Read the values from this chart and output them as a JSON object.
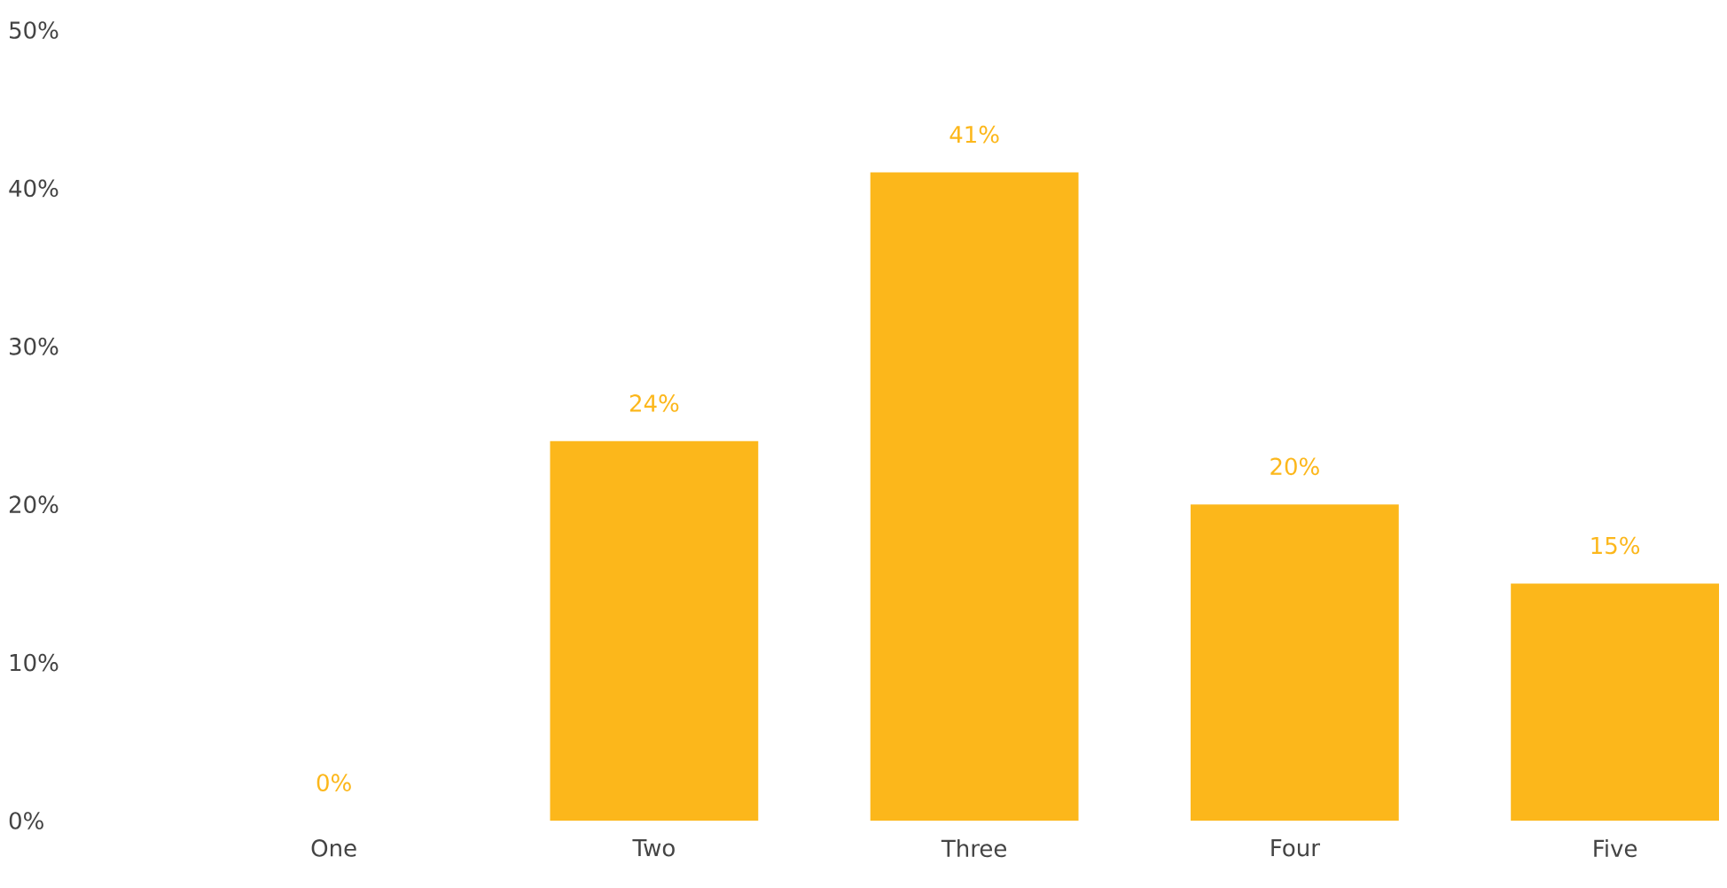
{
  "chart_data": {
    "type": "bar",
    "categories": [
      "One",
      "Two",
      "Three",
      "Four",
      "Five"
    ],
    "values": [
      0,
      24,
      41,
      20,
      15
    ],
    "value_labels": [
      "0%",
      "24%",
      "41%",
      "20%",
      "15%"
    ],
    "color": "#fcb71b",
    "ylim": [
      0,
      50
    ],
    "yticks": [
      {
        "value": 0,
        "label": "0%"
      },
      {
        "value": 10,
        "label": "10%"
      },
      {
        "value": 20,
        "label": "20%"
      },
      {
        "value": 30,
        "label": "30%"
      },
      {
        "value": 40,
        "label": "40%"
      },
      {
        "value": 50,
        "label": "50%"
      }
    ]
  }
}
